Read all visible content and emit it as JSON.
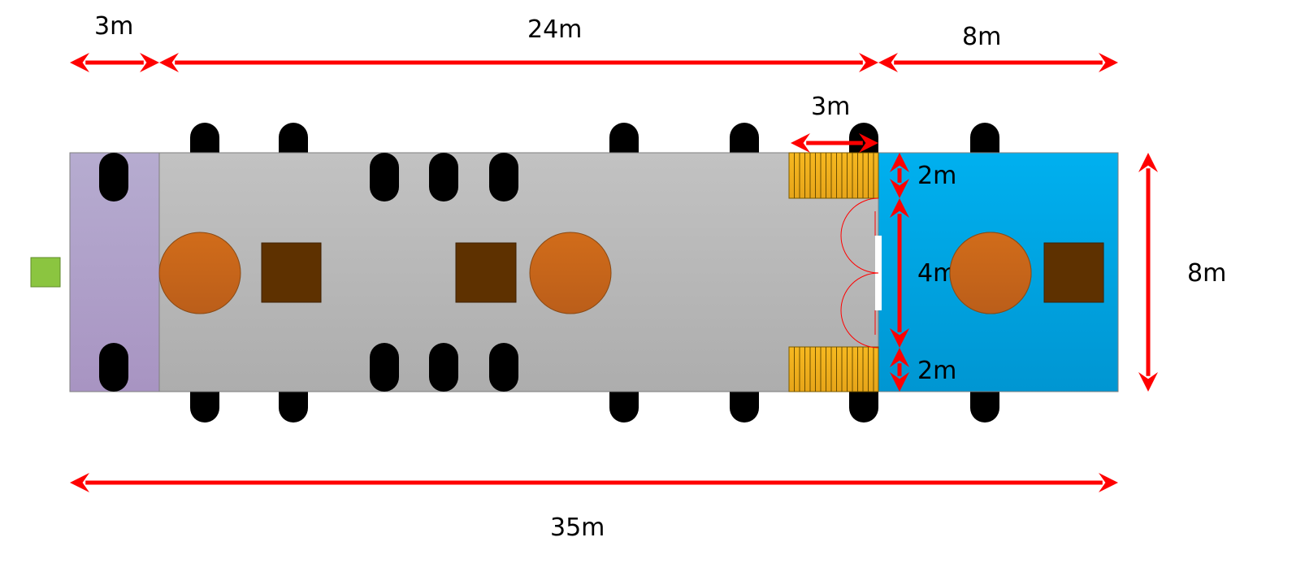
{
  "dimensions": {
    "front_section": "3m",
    "middle_section": "24m",
    "rear_section": "8m",
    "stair_length": "3m",
    "stair_upper_width": "2m",
    "door_width": "4m",
    "stair_lower_width": "2m",
    "overall_width": "8m",
    "overall_length": "35m"
  },
  "colors": {
    "front_section": "#b1a4cb",
    "middle_section": "#b9b9b9",
    "rear_section": "#00aae6",
    "stairs": "#f2b01e",
    "round_object": "#c96419",
    "square_object": "#5e3100",
    "marker": "#8bc540",
    "wheel": "#000000",
    "dimension_arrow": "#ff0000",
    "door_swing": "#ff0000"
  }
}
